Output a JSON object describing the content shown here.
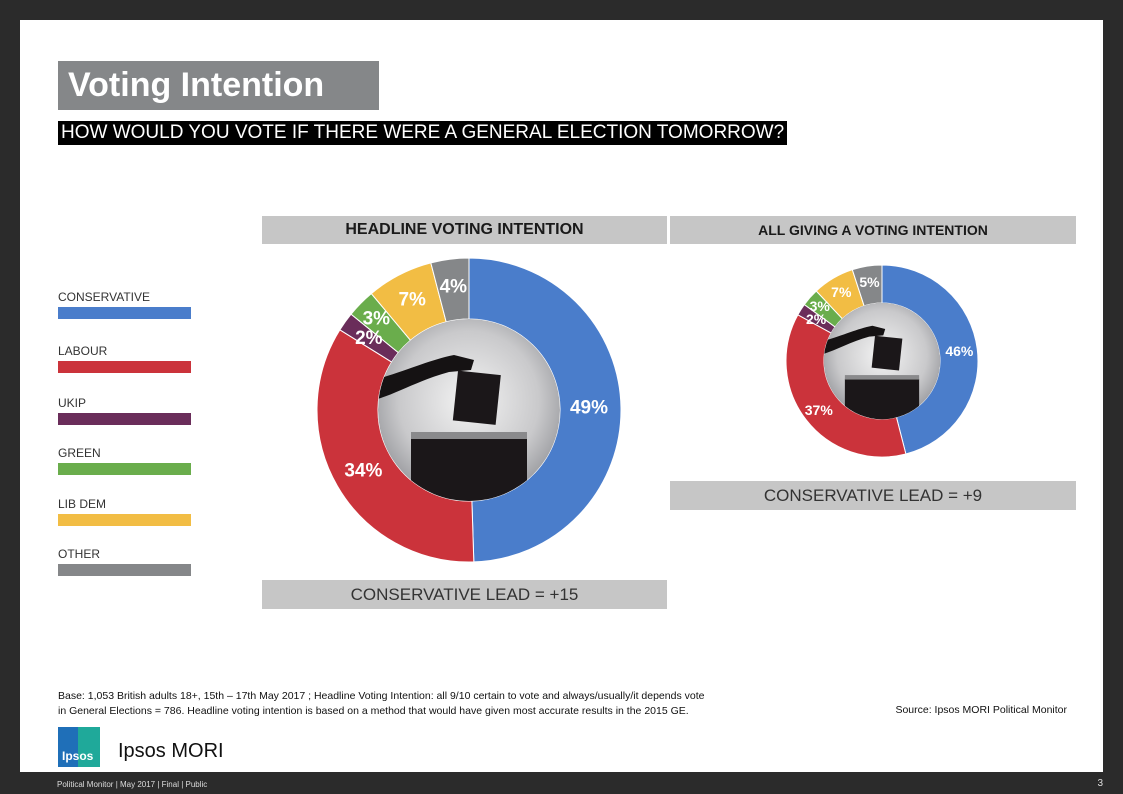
{
  "title": "Voting Intention",
  "subtitle": "HOW WOULD YOU VOTE IF THERE WERE A GENERAL ELECTION TOMORROW?",
  "legend": [
    {
      "label": "CONSERVATIVE",
      "color": "#4a7dcb"
    },
    {
      "label": "LABOUR",
      "color": "#cb333b"
    },
    {
      "label": "UKIP",
      "color": "#6a2d5a"
    },
    {
      "label": "GREEN",
      "color": "#6aad4c"
    },
    {
      "label": "LIB DEM",
      "color": "#f2bd44"
    },
    {
      "label": "OTHER",
      "color": "#858789"
    }
  ],
  "chart_data": [
    {
      "type": "pie",
      "title": "HEADLINE VOTING INTENTION",
      "categories": [
        "CONSERVATIVE",
        "LABOUR",
        "UKIP",
        "GREEN",
        "LIB DEM",
        "OTHER"
      ],
      "values": [
        49,
        34,
        2,
        3,
        7,
        4
      ],
      "labels": [
        "49%",
        "34%",
        "2%",
        "3%",
        "7%",
        "4%"
      ],
      "lead": "CONSERVATIVE LEAD = +15"
    },
    {
      "type": "pie",
      "title": "ALL GIVING A VOTING INTENTION",
      "categories": [
        "CONSERVATIVE",
        "LABOUR",
        "UKIP",
        "GREEN",
        "LIB DEM",
        "OTHER"
      ],
      "values": [
        46,
        37,
        2,
        3,
        7,
        5
      ],
      "labels": [
        "46%",
        "37%",
        "2%",
        "3%",
        "7%",
        "5%"
      ],
      "lead": "CONSERVATIVE LEAD = +9"
    }
  ],
  "footnote_line1": "Base: 1,053 British adults 18+, 15th – 17th May 2017 ; Headline Voting Intention: all 9/10 certain to vote and always/usually/it depends vote",
  "footnote_line2": "in General Elections = 786. Headline voting intention is based on a method that would have given most accurate results in the 2015 GE.",
  "source": "Source: Ipsos MORI Political Monitor",
  "logo_word": "Ipsos",
  "brand": "Ipsos MORI",
  "footer": "Political Monitor | May 2017 | Final | Public",
  "page_number": "3"
}
